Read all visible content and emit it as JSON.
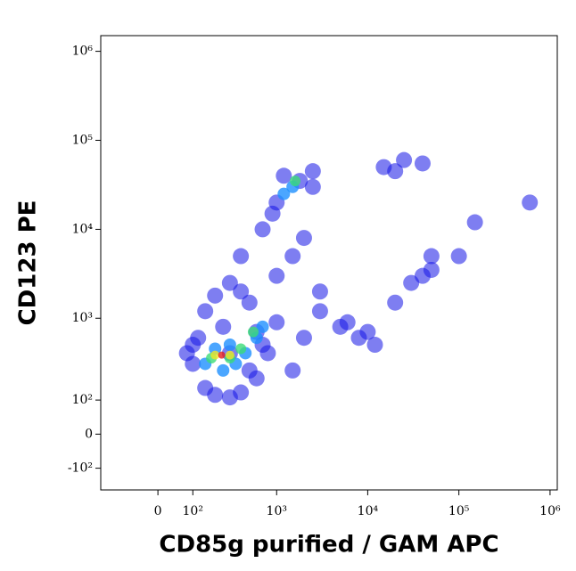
{
  "chart_data": {
    "type": "scatter",
    "xlabel": "CD85g purified / GAM APC",
    "ylabel": "CD123 PE",
    "scale": "biexponential",
    "xlim": [
      -200,
      1200000
    ],
    "ylim": [
      -200,
      1500000
    ],
    "xticks": [
      {
        "value": 0,
        "label": "0"
      },
      {
        "value": 100,
        "label": "10²"
      },
      {
        "value": 1000,
        "label": "10³"
      },
      {
        "value": 10000,
        "label": "10⁴"
      },
      {
        "value": 100000,
        "label": "10⁵"
      },
      {
        "value": 1000000,
        "label": "10⁶"
      }
    ],
    "yticks": [
      {
        "value": -100,
        "label": "-10²"
      },
      {
        "value": 0,
        "label": "0"
      },
      {
        "value": 100,
        "label": "10²"
      },
      {
        "value": 1000,
        "label": "10³"
      },
      {
        "value": 10000,
        "label": "10⁴"
      },
      {
        "value": 100000,
        "label": "10⁵"
      },
      {
        "value": 1000000,
        "label": "10⁶"
      }
    ],
    "series": [
      {
        "color": "#1414e6",
        "points": [
          [
            150,
            150
          ],
          [
            200,
            120
          ],
          [
            300,
            110
          ],
          [
            400,
            130
          ],
          [
            600,
            200
          ],
          [
            800,
            400
          ],
          [
            120,
            600
          ],
          [
            250,
            800
          ],
          [
            500,
            1500
          ],
          [
            1000,
            3000
          ],
          [
            1500,
            5000
          ],
          [
            2000,
            8000
          ],
          [
            3000,
            2000
          ],
          [
            5000,
            800
          ],
          [
            8000,
            600
          ],
          [
            12000,
            500
          ],
          [
            20000,
            1500
          ],
          [
            30000,
            2500
          ],
          [
            40000,
            3000
          ],
          [
            50000,
            3500
          ],
          [
            15000,
            50000
          ],
          [
            25000,
            60000
          ],
          [
            1000,
            20000
          ],
          [
            1200,
            40000
          ],
          [
            1800,
            35000
          ],
          [
            2500,
            30000
          ],
          [
            700,
            10000
          ],
          [
            900,
            15000
          ],
          [
            400,
            5000
          ],
          [
            300,
            2500
          ],
          [
            200,
            1800
          ],
          [
            150,
            1200
          ],
          [
            100,
            300
          ],
          [
            3000,
            1200
          ],
          [
            6000,
            900
          ],
          [
            10000,
            700
          ],
          [
            20000,
            45000
          ],
          [
            40000,
            55000
          ],
          [
            150000,
            12000
          ],
          [
            600000,
            20000
          ],
          [
            100000,
            5000
          ],
          [
            50000,
            5000
          ],
          [
            2000,
            600
          ],
          [
            700,
            500
          ],
          [
            500,
            250
          ],
          [
            300,
            400
          ],
          [
            1500,
            250
          ],
          [
            2500,
            45000
          ],
          [
            600,
            700
          ],
          [
            1000,
            900
          ],
          [
            400,
            2000
          ],
          [
            100,
            500
          ],
          [
            80,
            400
          ]
        ]
      },
      {
        "color": "#1e90ff",
        "points": [
          [
            150,
            300
          ],
          [
            250,
            250
          ],
          [
            350,
            300
          ],
          [
            450,
            400
          ],
          [
            600,
            600
          ],
          [
            700,
            800
          ],
          [
            200,
            450
          ],
          [
            1500,
            30000
          ],
          [
            1200,
            25000
          ],
          [
            300,
            500
          ]
        ]
      },
      {
        "color": "#3cdc78",
        "points": [
          [
            180,
            350
          ],
          [
            300,
            350
          ],
          [
            400,
            450
          ],
          [
            550,
            700
          ],
          [
            1600,
            35000
          ]
        ]
      },
      {
        "color": "#f0e628",
        "points": [
          [
            200,
            380
          ],
          [
            300,
            380
          ]
        ]
      },
      {
        "color": "#e61e1e",
        "points": [
          [
            240,
            380
          ]
        ]
      }
    ]
  }
}
